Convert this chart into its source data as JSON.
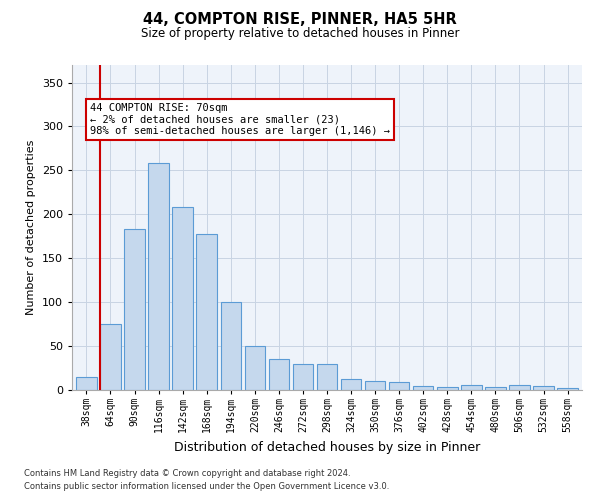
{
  "title_line1": "44, COMPTON RISE, PINNER, HA5 5HR",
  "title_line2": "Size of property relative to detached houses in Pinner",
  "xlabel": "Distribution of detached houses by size in Pinner",
  "ylabel": "Number of detached properties",
  "bar_color": "#c5d8ed",
  "bar_edge_color": "#5b9bd5",
  "highlight_color": "#cc0000",
  "background_color": "#eef3fa",
  "categories": [
    "38sqm",
    "64sqm",
    "90sqm",
    "116sqm",
    "142sqm",
    "168sqm",
    "194sqm",
    "220sqm",
    "246sqm",
    "272sqm",
    "298sqm",
    "324sqm",
    "350sqm",
    "376sqm",
    "402sqm",
    "428sqm",
    "454sqm",
    "480sqm",
    "506sqm",
    "532sqm",
    "558sqm"
  ],
  "values": [
    15,
    75,
    183,
    258,
    208,
    178,
    100,
    50,
    35,
    30,
    30,
    12,
    10,
    9,
    5,
    3,
    6,
    3,
    6,
    5,
    2
  ],
  "highlight_bar_index": 1,
  "annotation_text": "44 COMPTON RISE: 70sqm\n← 2% of detached houses are smaller (23)\n98% of semi-detached houses are larger (1,146) →",
  "ylim": [
    0,
    370
  ],
  "yticks": [
    0,
    50,
    100,
    150,
    200,
    250,
    300,
    350
  ],
  "footer_line1": "Contains HM Land Registry data © Crown copyright and database right 2024.",
  "footer_line2": "Contains public sector information licensed under the Open Government Licence v3.0."
}
